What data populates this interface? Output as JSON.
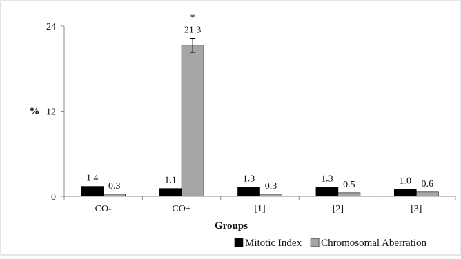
{
  "chart_data": {
    "type": "bar",
    "categories": [
      "CO-",
      "CO+",
      "[1]",
      "[2]",
      "[3]"
    ],
    "series": [
      {
        "name": "Mitotic Index",
        "values": [
          1.4,
          1.1,
          1.3,
          1.3,
          1.0
        ],
        "labels": [
          "1.4",
          "1.1",
          "1.3",
          "1.3",
          "1.0"
        ],
        "color": "#000000"
      },
      {
        "name": "Chromosomal Aberration",
        "values": [
          0.3,
          21.3,
          0.3,
          0.5,
          0.6
        ],
        "labels": [
          "0.3",
          "21.3",
          "0.3",
          "0.5",
          "0.6"
        ],
        "color": "#a6a6a6"
      }
    ],
    "error_bars": {
      "series": "Chromosomal Aberration",
      "category": "CO+",
      "plus_minus": 1.0
    },
    "annotations": [
      {
        "category": "CO+",
        "text": "*"
      }
    ],
    "xlabel": "Groups",
    "ylabel": "%",
    "ylim": [
      0,
      24
    ],
    "yticks": [
      0,
      12,
      24
    ],
    "grid": false,
    "legend_position": "bottom-right"
  }
}
